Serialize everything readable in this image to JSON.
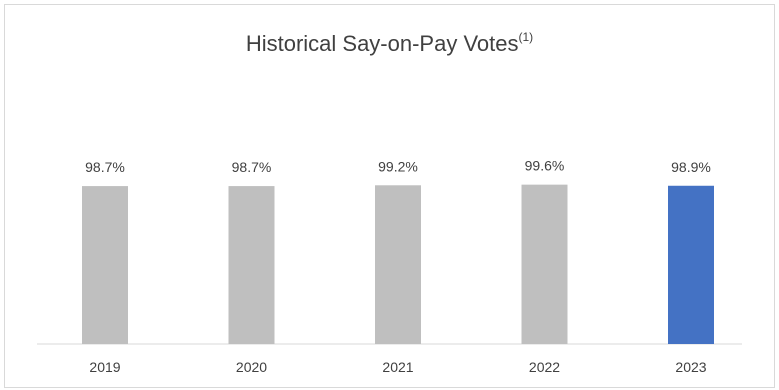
{
  "chart_data": {
    "type": "bar",
    "title": "Historical Say-on-Pay Votes",
    "title_superscript": "(1)",
    "categories": [
      "2019",
      "2020",
      "2021",
      "2022",
      "2023"
    ],
    "values": [
      98.7,
      98.7,
      99.2,
      99.6,
      98.9
    ],
    "value_labels": [
      "98.7%",
      "98.7%",
      "99.2%",
      "99.6%",
      "98.9%"
    ],
    "colors": [
      "#bfbfbf",
      "#bfbfbf",
      "#bfbfbf",
      "#bfbfbf",
      "#4472c4"
    ],
    "xlabel": "",
    "ylabel": "",
    "ylim": [
      0,
      100
    ],
    "grid": false,
    "legend": "none"
  }
}
